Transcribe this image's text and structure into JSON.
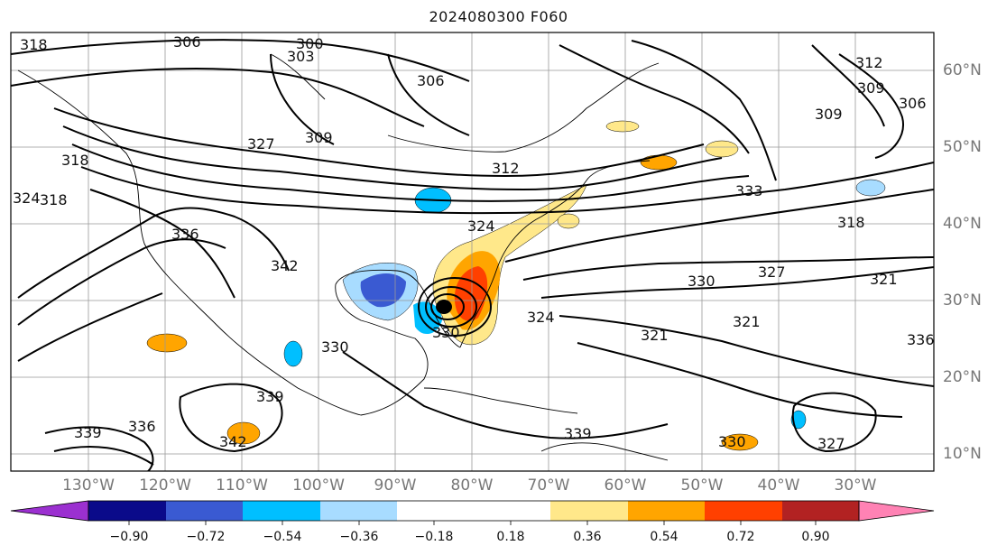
{
  "title": "2024080300 F060",
  "lon_labels": [
    "130°W",
    "120°W",
    "110°W",
    "100°W",
    "90°W",
    "80°W",
    "70°W",
    "60°W",
    "50°W",
    "40°W",
    "30°W"
  ],
  "lat_labels": [
    "60°N",
    "50°N",
    "40°N",
    "30°N",
    "20°N",
    "10°N"
  ],
  "colorbar": {
    "ticks": [
      "−0.90",
      "−0.72",
      "−0.54",
      "−0.36",
      "−0.18",
      "0.18",
      "0.36",
      "0.54",
      "0.72",
      "0.90"
    ],
    "colors": [
      "#9b30d0",
      "#0a0a8a",
      "#3a5ad2",
      "#00bfff",
      "#a8dcff",
      "#ffffff",
      "#ffe88a",
      "#ffa500",
      "#ff4000",
      "#b22222",
      "#ff82b4"
    ]
  },
  "contour_labels": [
    "318",
    "300",
    "303",
    "306",
    "309",
    "306",
    "312",
    "309",
    "306",
    "318",
    "327",
    "309",
    "312",
    "318",
    "324",
    "336",
    "342",
    "324",
    "333",
    "318",
    "321",
    "327",
    "330",
    "324",
    "321",
    "321",
    "330",
    "339",
    "339",
    "342",
    "336",
    "339",
    "330",
    "327",
    "330",
    "336"
  ]
}
